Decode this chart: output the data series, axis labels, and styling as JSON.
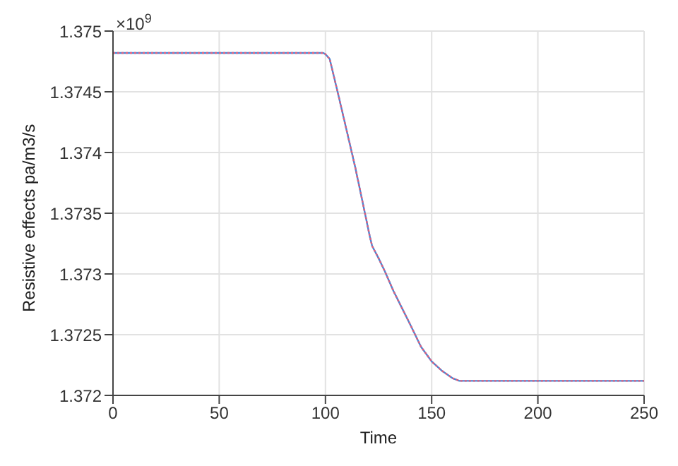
{
  "chart_data": {
    "type": "line",
    "xlabel": "Time",
    "ylabel": "Resistive effects pa/m3/s",
    "annotations": [
      "×10$^{9}$"
    ],
    "x": [
      0,
      99,
      100,
      102,
      106,
      110,
      114,
      118,
      121,
      122,
      125,
      128,
      132,
      136,
      140,
      145,
      150,
      155,
      160,
      163,
      250
    ],
    "series": [
      {
        "color": "#4a86d4",
        "line_style": "solid",
        "values": [
          1.37482,
          1.37482,
          1.37481,
          1.37477,
          1.37448,
          1.37418,
          1.37388,
          1.37355,
          1.3733,
          1.37323,
          1.37313,
          1.37302,
          1.37286,
          1.37272,
          1.37258,
          1.3724,
          1.37228,
          1.3722,
          1.37214,
          1.37212,
          1.37212
        ]
      },
      {
        "color": "#e0607e",
        "line_style": "dotted",
        "values": [
          1.37482,
          1.37482,
          1.37481,
          1.37477,
          1.37448,
          1.37418,
          1.37388,
          1.37355,
          1.3733,
          1.37323,
          1.37313,
          1.37302,
          1.37286,
          1.37272,
          1.37258,
          1.3724,
          1.37228,
          1.3722,
          1.37214,
          1.37212,
          1.37212
        ]
      }
    ],
    "xlim": [
      0,
      250
    ],
    "xticks": [
      0,
      50,
      100,
      150,
      200,
      250
    ],
    "ylim": [
      1.372,
      1.375
    ],
    "yticks": [
      1.372,
      1.3725,
      1.373,
      1.3735,
      1.374,
      1.3745,
      1.375
    ],
    "grid": true,
    "legend": false,
    "marker": "none"
  }
}
